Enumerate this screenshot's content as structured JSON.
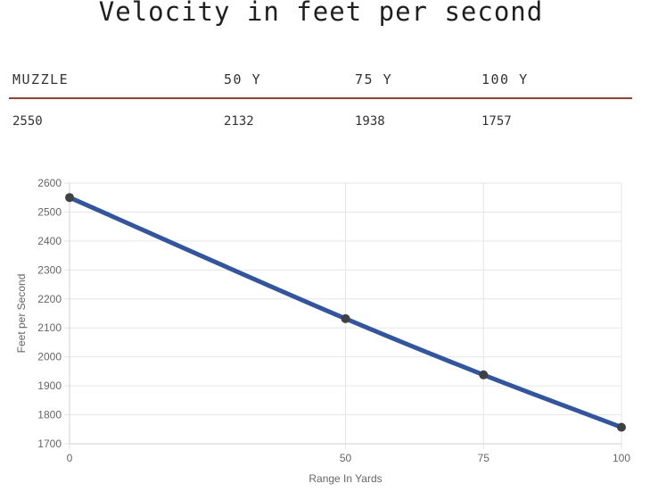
{
  "title": "Velocity in feet per second",
  "table": {
    "headers": [
      "MUZZLE",
      "50 Y",
      "75 Y",
      "100 Y"
    ],
    "values": [
      "2550",
      "2132",
      "1938",
      "1757"
    ]
  },
  "colors": {
    "accent_line": "#b23a2c",
    "series_line": "#2f55a4",
    "point": "#3f4145",
    "grid": "#e6e6e6"
  },
  "chart_data": {
    "type": "line",
    "x": [
      0,
      50,
      75,
      100
    ],
    "series": [
      {
        "values": [
          2550,
          2132,
          1938,
          1757
        ]
      }
    ],
    "xlabel": "Range In Yards",
    "ylabel": "Feet per Second",
    "xlim": [
      0,
      100
    ],
    "ylim": [
      1700,
      2600
    ],
    "x_ticks": [
      "0",
      "50",
      "75",
      "100"
    ],
    "y_ticks": [
      "1700",
      "1800",
      "1900",
      "2000",
      "2100",
      "2200",
      "2300",
      "2400",
      "2500",
      "2600"
    ],
    "grid": true
  }
}
